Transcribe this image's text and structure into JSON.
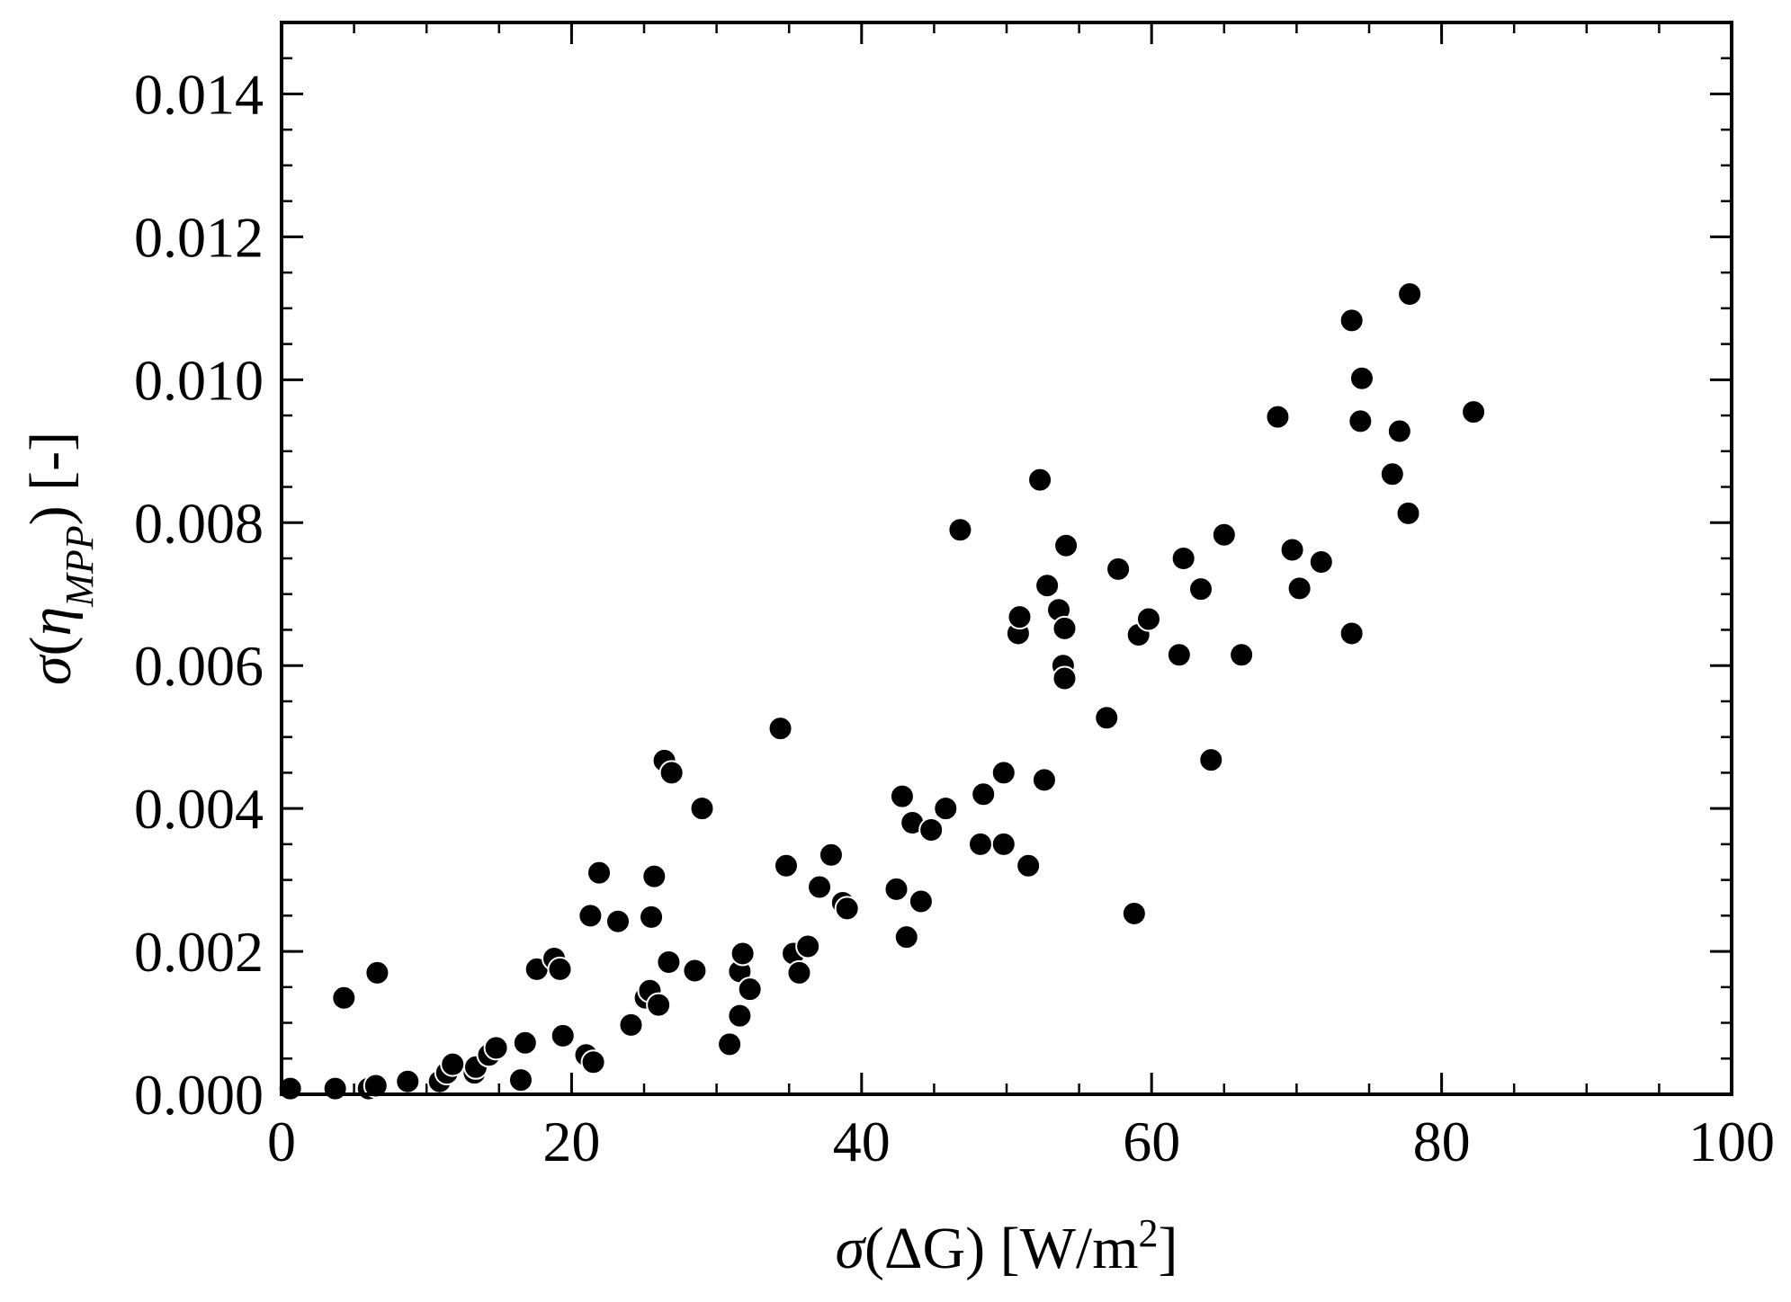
{
  "chart_data": {
    "type": "scatter",
    "xlabel": {
      "prefix": "σ",
      "inner": "(ΔG) [W/m",
      "sup": "2",
      "suffix": "]"
    },
    "ylabel": {
      "prefix": "σ",
      "open": "(",
      "eta": "η",
      "sub": "MPP",
      "close": ") [-]"
    },
    "xlim": [
      0,
      100
    ],
    "ylim": [
      0,
      0.015
    ],
    "x_ticks": [
      0,
      20,
      40,
      60,
      80,
      100
    ],
    "x_tick_labels": [
      "0",
      "20",
      "40",
      "60",
      "80",
      "100"
    ],
    "y_ticks": [
      0.0,
      0.002,
      0.004,
      0.006,
      0.008,
      0.01,
      0.012,
      0.014
    ],
    "y_tick_labels": [
      "0.000",
      "0.002",
      "0.004",
      "0.006",
      "0.008",
      "0.010",
      "0.012",
      "0.014"
    ],
    "grid": false,
    "marker_color": "#000000",
    "marker_edge_color": "#ffffff",
    "points": [
      [
        0.6,
        8e-05
      ],
      [
        3.7,
        8e-05
      ],
      [
        4.3,
        0.00135
      ],
      [
        6.0,
        8e-05
      ],
      [
        6.5,
        0.00012
      ],
      [
        6.6,
        0.0017
      ],
      [
        8.7,
        0.00018
      ],
      [
        10.9,
        0.00018
      ],
      [
        11.4,
        0.0003
      ],
      [
        11.8,
        0.00042
      ],
      [
        13.3,
        0.0003
      ],
      [
        13.4,
        0.00038
      ],
      [
        14.3,
        0.00055
      ],
      [
        14.8,
        0.00065
      ],
      [
        16.5,
        0.0002
      ],
      [
        16.8,
        0.00072
      ],
      [
        17.6,
        0.00175
      ],
      [
        18.8,
        0.0019
      ],
      [
        19.2,
        0.00175
      ],
      [
        19.4,
        0.00082
      ],
      [
        21.0,
        0.00055
      ],
      [
        21.3,
        0.0025
      ],
      [
        21.5,
        0.00045
      ],
      [
        21.9,
        0.0031
      ],
      [
        23.2,
        0.00242
      ],
      [
        24.1,
        0.00097
      ],
      [
        25.1,
        0.00135
      ],
      [
        25.4,
        0.00145
      ],
      [
        25.5,
        0.00248
      ],
      [
        25.7,
        0.00305
      ],
      [
        26.0,
        0.00125
      ],
      [
        26.4,
        0.00467
      ],
      [
        26.7,
        0.00185
      ],
      [
        26.9,
        0.0045
      ],
      [
        28.5,
        0.00173
      ],
      [
        29.0,
        0.004
      ],
      [
        30.9,
        0.0007
      ],
      [
        31.6,
        0.0011
      ],
      [
        31.6,
        0.00172
      ],
      [
        31.8,
        0.00197
      ],
      [
        32.3,
        0.00147
      ],
      [
        34.4,
        0.00512
      ],
      [
        34.8,
        0.0032
      ],
      [
        35.3,
        0.00197
      ],
      [
        35.7,
        0.0017
      ],
      [
        36.3,
        0.00207
      ],
      [
        37.1,
        0.0029
      ],
      [
        37.9,
        0.00335
      ],
      [
        38.7,
        0.00268
      ],
      [
        39.0,
        0.0026
      ],
      [
        42.4,
        0.00287
      ],
      [
        42.8,
        0.00417
      ],
      [
        43.1,
        0.0022
      ],
      [
        43.5,
        0.0038
      ],
      [
        44.1,
        0.0027
      ],
      [
        44.8,
        0.0037
      ],
      [
        45.8,
        0.004
      ],
      [
        46.8,
        0.0079
      ],
      [
        48.2,
        0.0035
      ],
      [
        48.4,
        0.0042
      ],
      [
        49.8,
        0.0045
      ],
      [
        49.8,
        0.0035
      ],
      [
        50.8,
        0.00645
      ],
      [
        50.9,
        0.00668
      ],
      [
        51.5,
        0.0032
      ],
      [
        52.3,
        0.0086
      ],
      [
        52.6,
        0.0044
      ],
      [
        52.8,
        0.00712
      ],
      [
        53.6,
        0.00678
      ],
      [
        53.9,
        0.006
      ],
      [
        54.0,
        0.00582
      ],
      [
        54.0,
        0.00652
      ],
      [
        54.1,
        0.00768
      ],
      [
        56.9,
        0.00527
      ],
      [
        57.7,
        0.00735
      ],
      [
        58.8,
        0.00253
      ],
      [
        59.1,
        0.00643
      ],
      [
        59.8,
        0.00665
      ],
      [
        61.9,
        0.00615
      ],
      [
        62.2,
        0.0075
      ],
      [
        63.4,
        0.00707
      ],
      [
        64.1,
        0.00468
      ],
      [
        65.0,
        0.00783
      ],
      [
        66.2,
        0.00615
      ],
      [
        68.7,
        0.00948
      ],
      [
        69.7,
        0.00762
      ],
      [
        70.2,
        0.00708
      ],
      [
        71.7,
        0.00745
      ],
      [
        73.8,
        0.01083
      ],
      [
        73.8,
        0.00645
      ],
      [
        74.4,
        0.00942
      ],
      [
        74.5,
        0.01002
      ],
      [
        76.6,
        0.00868
      ],
      [
        77.1,
        0.00928
      ],
      [
        77.7,
        0.00813
      ],
      [
        77.8,
        0.0112
      ],
      [
        82.2,
        0.00955
      ]
    ]
  }
}
